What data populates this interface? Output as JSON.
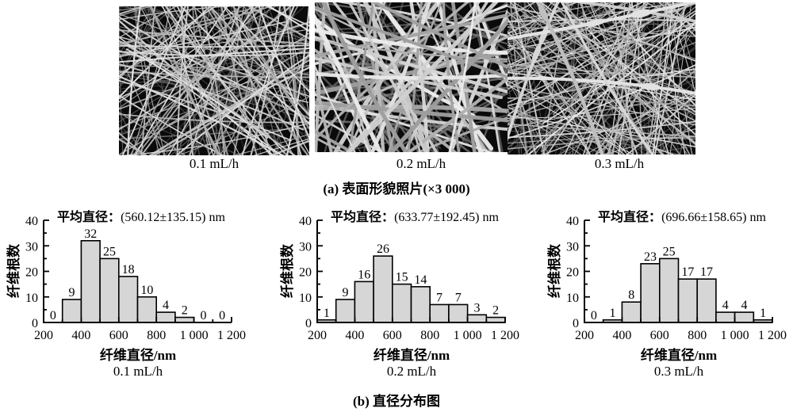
{
  "panel_a": {
    "caption": "(a) 表面形貌照片(×3 000)",
    "images": [
      {
        "label": "0.1 mL/h"
      },
      {
        "label": "0.2 mL/h"
      },
      {
        "label": "0.3 mL/h"
      }
    ]
  },
  "panel_b": {
    "caption": "(b) 直径分布图"
  },
  "chart_data": [
    {
      "type": "bar",
      "title_label": "平均直径：",
      "title_value": "(560.12±135.15) nm",
      "ylabel": "纤维根数",
      "xlabel": "纤维直径/nm",
      "sublabel": "0.1 mL/h",
      "xlim": [
        200,
        1200
      ],
      "ylim": [
        0,
        40
      ],
      "bin_edges": [
        200,
        300,
        400,
        500,
        600,
        700,
        800,
        900,
        1000,
        1100,
        1200
      ],
      "values": [
        0,
        9,
        32,
        25,
        18,
        10,
        4,
        2,
        0,
        0
      ],
      "xticks": [
        200,
        400,
        600,
        800,
        1000,
        1200
      ],
      "xticklabels": [
        "200",
        "400",
        "600",
        "800",
        "1 000",
        "1 200"
      ],
      "yticks": [
        0,
        10,
        20,
        30,
        40
      ],
      "bar_color": "#d6d6d6",
      "axis_color": "#000000"
    },
    {
      "type": "bar",
      "title_label": "平均直径：",
      "title_value": "(633.77±192.45) nm",
      "ylabel": "纤维根数",
      "xlabel": "纤维直径/nm",
      "sublabel": "0.2 mL/h",
      "xlim": [
        200,
        1200
      ],
      "ylim": [
        0,
        40
      ],
      "bin_edges": [
        200,
        300,
        400,
        500,
        600,
        700,
        800,
        900,
        1000,
        1100,
        1200
      ],
      "values": [
        1,
        9,
        16,
        26,
        15,
        14,
        7,
        7,
        3,
        2
      ],
      "xticks": [
        200,
        400,
        600,
        800,
        1000,
        1200
      ],
      "xticklabels": [
        "200",
        "400",
        "600",
        "800",
        "1 000",
        "1 200"
      ],
      "yticks": [
        0,
        10,
        20,
        30,
        40
      ],
      "bar_color": "#d6d6d6",
      "axis_color": "#000000"
    },
    {
      "type": "bar",
      "title_label": "平均直径：",
      "title_value": "(696.66±158.65) nm",
      "ylabel": "纤维根数",
      "xlabel": "纤维直径/nm",
      "sublabel": "0.3 mL/h",
      "xlim": [
        200,
        1200
      ],
      "ylim": [
        0,
        40
      ],
      "bin_edges": [
        200,
        300,
        400,
        500,
        600,
        700,
        800,
        900,
        1000,
        1100,
        1200
      ],
      "values": [
        0,
        1,
        8,
        23,
        25,
        17,
        17,
        4,
        4,
        1
      ],
      "xticks": [
        200,
        400,
        600,
        800,
        1000,
        1200
      ],
      "xticklabels": [
        "200",
        "400",
        "600",
        "800",
        "1 000",
        "1 200"
      ],
      "yticks": [
        0,
        10,
        20,
        30,
        40
      ],
      "bar_color": "#d6d6d6",
      "axis_color": "#000000"
    }
  ]
}
